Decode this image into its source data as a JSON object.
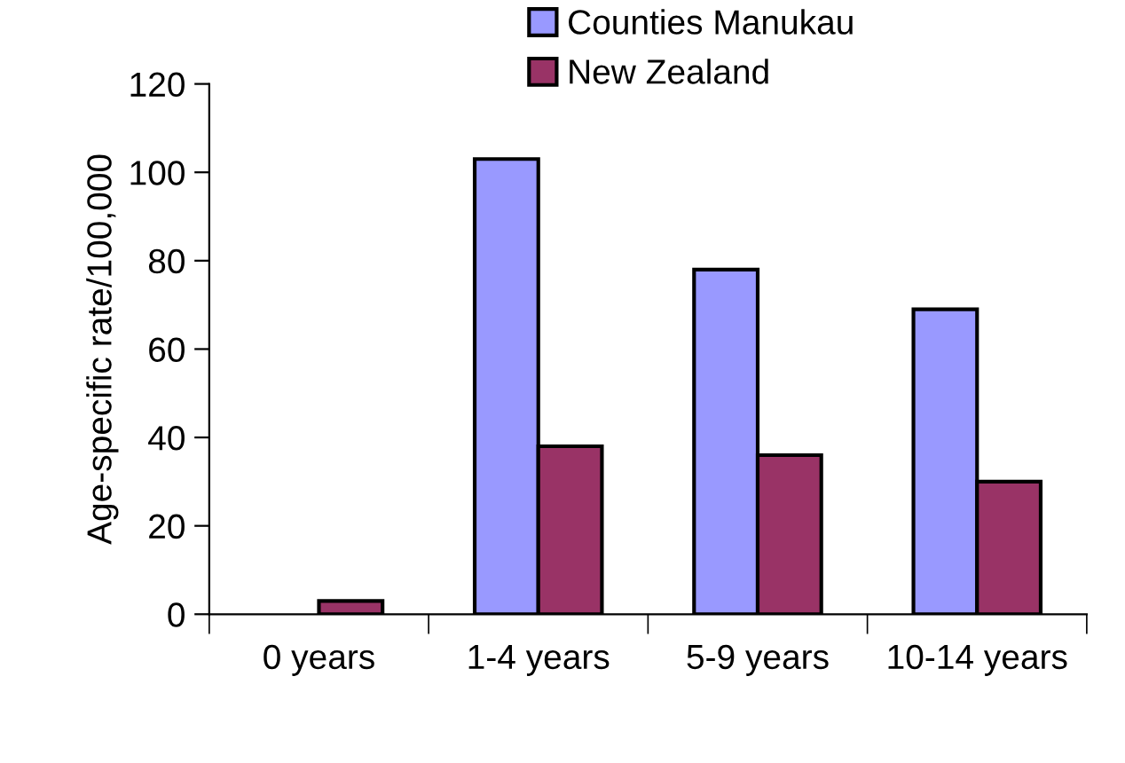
{
  "chart_data": {
    "type": "bar",
    "ylabel": "Age-specific rate/100,000",
    "categories": [
      "0 years",
      "1-4 years",
      "5-9 years",
      "10-14 years"
    ],
    "series": [
      {
        "name": "Counties Manukau",
        "color": "#9999ff",
        "values": [
          null,
          103,
          78,
          69
        ]
      },
      {
        "name": "New Zealand",
        "color": "#993366",
        "values": [
          3,
          38,
          36,
          30
        ]
      }
    ],
    "ylim": [
      0,
      120
    ],
    "yticks": [
      0,
      20,
      40,
      60,
      80,
      100,
      120
    ],
    "grid": false,
    "legend": "top"
  }
}
